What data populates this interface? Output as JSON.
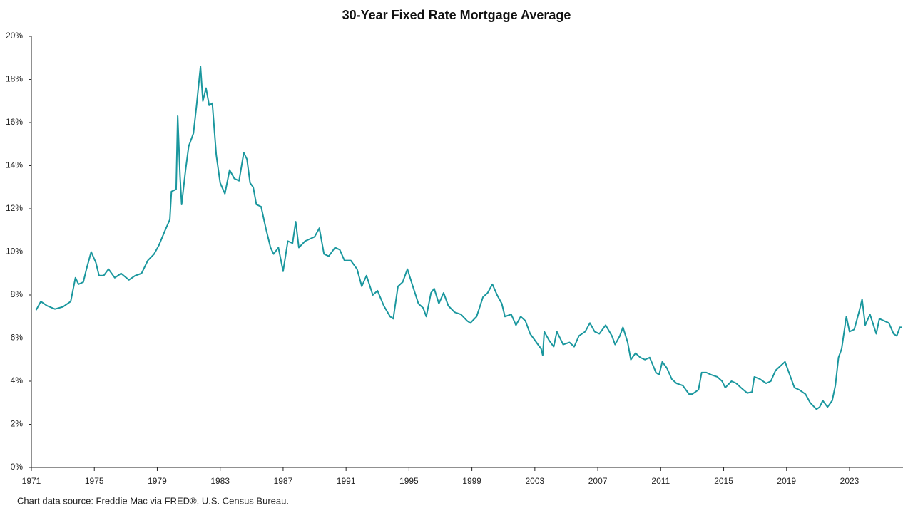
{
  "chart_data": {
    "type": "line",
    "title": "30-Year Fixed Rate Mortgage Average",
    "source": "Chart data source: Freddie Mac via FRED®, U.S. Census Bureau.",
    "xlim": [
      1971,
      2026.4
    ],
    "xticks": [
      1971,
      1975,
      1979,
      1983,
      1987,
      1991,
      1995,
      1999,
      2003,
      2007,
      2011,
      2015,
      2019,
      2023
    ],
    "ylim": [
      0,
      20
    ],
    "yticks": [
      {
        "value": 0,
        "label": "0%"
      },
      {
        "value": 2,
        "label": "2%"
      },
      {
        "value": 4,
        "label": "4%"
      },
      {
        "value": 6,
        "label": "6%"
      },
      {
        "value": 8,
        "label": "8%"
      },
      {
        "value": 10,
        "label": "10%"
      },
      {
        "value": 12,
        "label": "12%"
      },
      {
        "value": 14,
        "label": "14%"
      },
      {
        "value": 16,
        "label": "16%"
      },
      {
        "value": 18,
        "label": "18%"
      },
      {
        "value": 20,
        "label": "20%"
      }
    ],
    "grid": false,
    "series": [
      {
        "name": "30-Year Fixed Rate Mortgage Average",
        "color": "#1a979e",
        "x": [
          1971.3,
          1971.6,
          1972.0,
          1972.5,
          1973.0,
          1973.5,
          1973.8,
          1974.0,
          1974.3,
          1974.5,
          1974.8,
          1975.1,
          1975.3,
          1975.6,
          1975.9,
          1976.3,
          1976.7,
          1977.2,
          1977.6,
          1978.0,
          1978.4,
          1978.8,
          1979.1,
          1979.5,
          1979.8,
          1979.9,
          1980.2,
          1980.3,
          1980.45,
          1980.55,
          1980.8,
          1981.0,
          1981.3,
          1981.5,
          1981.75,
          1981.9,
          1982.1,
          1982.3,
          1982.5,
          1982.75,
          1983.0,
          1983.3,
          1983.6,
          1983.9,
          1984.2,
          1984.5,
          1984.7,
          1984.9,
          1985.1,
          1985.3,
          1985.6,
          1985.9,
          1986.2,
          1986.4,
          1986.7,
          1987.0,
          1987.3,
          1987.6,
          1987.8,
          1988.0,
          1988.4,
          1988.7,
          1989.0,
          1989.3,
          1989.6,
          1989.9,
          1990.3,
          1990.6,
          1990.9,
          1991.3,
          1991.7,
          1992.0,
          1992.3,
          1992.7,
          1993.0,
          1993.4,
          1993.8,
          1994.0,
          1994.3,
          1994.6,
          1994.9,
          1995.2,
          1995.6,
          1995.9,
          1996.1,
          1996.4,
          1996.6,
          1996.9,
          1997.2,
          1997.5,
          1997.9,
          1998.3,
          1998.7,
          1998.9,
          1999.3,
          1999.7,
          2000.0,
          2000.3,
          2000.6,
          2000.9,
          2001.1,
          2001.5,
          2001.8,
          2002.1,
          2002.4,
          2002.7,
          2003.0,
          2003.4,
          2003.5,
          2003.6,
          2003.9,
          2004.2,
          2004.4,
          2004.8,
          2005.2,
          2005.5,
          2005.8,
          2006.2,
          2006.5,
          2006.8,
          2007.1,
          2007.5,
          2007.9,
          2008.1,
          2008.4,
          2008.6,
          2008.9,
          2009.1,
          2009.4,
          2009.7,
          2010.0,
          2010.3,
          2010.7,
          2010.9,
          2011.1,
          2011.4,
          2011.7,
          2012.0,
          2012.4,
          2012.8,
          2013.0,
          2013.4,
          2013.6,
          2013.9,
          2014.2,
          2014.6,
          2014.9,
          2015.1,
          2015.5,
          2015.8,
          2016.1,
          2016.5,
          2016.8,
          2016.95,
          2017.3,
          2017.7,
          2018.0,
          2018.3,
          2018.9,
          2019.2,
          2019.5,
          2019.8,
          2020.2,
          2020.5,
          2020.9,
          2021.1,
          2021.3,
          2021.6,
          2021.9,
          2022.1,
          2022.3,
          2022.5,
          2022.8,
          2023.0,
          2023.3,
          2023.6,
          2023.8,
          2024.0,
          2024.3,
          2024.7,
          2024.9,
          2025.2,
          2025.5,
          2025.8,
          2026.0,
          2026.2,
          2026.35
        ],
        "values": [
          7.3,
          7.7,
          7.5,
          7.35,
          7.45,
          7.7,
          8.8,
          8.5,
          8.6,
          9.2,
          10.0,
          9.5,
          8.9,
          8.9,
          9.2,
          8.8,
          9.0,
          8.7,
          8.9,
          9.0,
          9.6,
          9.9,
          10.3,
          11.0,
          11.5,
          12.8,
          12.9,
          16.3,
          13.5,
          12.2,
          13.8,
          14.9,
          15.5,
          16.8,
          18.6,
          17.0,
          17.6,
          16.8,
          16.9,
          14.5,
          13.2,
          12.7,
          13.8,
          13.4,
          13.3,
          14.6,
          14.3,
          13.2,
          13.0,
          12.2,
          12.1,
          11.1,
          10.2,
          9.9,
          10.2,
          9.1,
          10.5,
          10.4,
          11.4,
          10.2,
          10.5,
          10.6,
          10.7,
          11.1,
          9.9,
          9.8,
          10.2,
          10.1,
          9.6,
          9.6,
          9.2,
          8.4,
          8.9,
          8.0,
          8.2,
          7.5,
          7.0,
          6.9,
          8.4,
          8.6,
          9.2,
          8.5,
          7.6,
          7.4,
          7.0,
          8.1,
          8.3,
          7.6,
          8.1,
          7.5,
          7.2,
          7.1,
          6.8,
          6.7,
          7.0,
          7.9,
          8.1,
          8.5,
          8.0,
          7.6,
          7.0,
          7.1,
          6.6,
          7.0,
          6.8,
          6.2,
          5.9,
          5.5,
          5.2,
          6.3,
          5.9,
          5.6,
          6.3,
          5.7,
          5.8,
          5.6,
          6.1,
          6.3,
          6.7,
          6.3,
          6.2,
          6.6,
          6.1,
          5.7,
          6.1,
          6.5,
          5.8,
          5.0,
          5.3,
          5.1,
          5.0,
          5.1,
          4.4,
          4.3,
          4.9,
          4.6,
          4.1,
          3.9,
          3.8,
          3.4,
          3.4,
          3.6,
          4.4,
          4.4,
          4.3,
          4.2,
          4.0,
          3.7,
          4.0,
          3.9,
          3.7,
          3.45,
          3.5,
          4.2,
          4.1,
          3.9,
          4.0,
          4.5,
          4.9,
          4.3,
          3.7,
          3.6,
          3.4,
          3.0,
          2.7,
          2.8,
          3.1,
          2.8,
          3.1,
          3.8,
          5.1,
          5.5,
          7.0,
          6.3,
          6.4,
          7.2,
          7.8,
          6.6,
          7.1,
          6.2,
          6.9,
          6.8,
          6.7,
          6.2,
          6.1,
          6.5,
          6.5
        ]
      }
    ]
  }
}
